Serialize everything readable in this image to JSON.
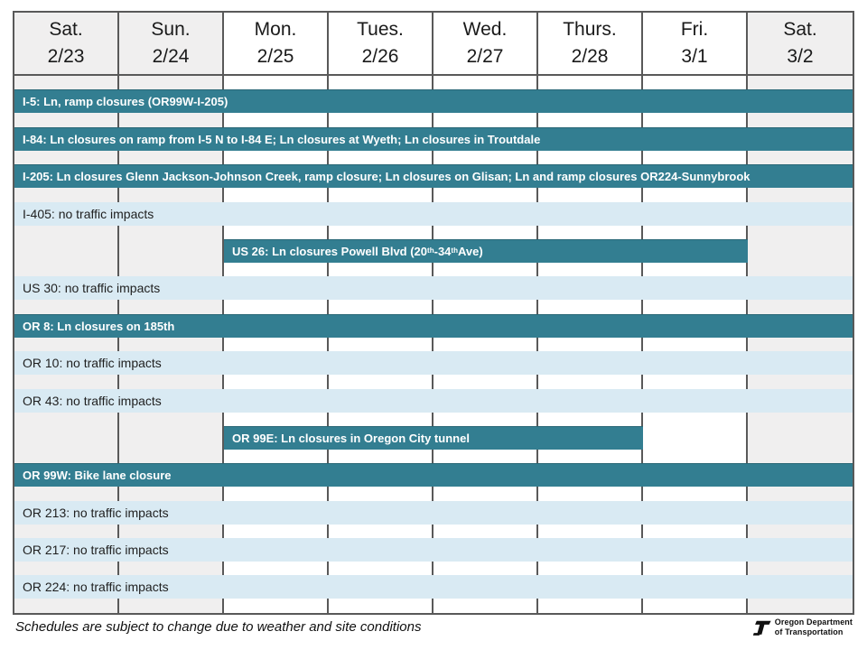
{
  "chart_data": {
    "type": "table",
    "subtype": "gantt-schedule",
    "num_days": 8,
    "days": [
      {
        "name": "Sat.",
        "date": "2/23",
        "weekend": true
      },
      {
        "name": "Sun.",
        "date": "2/24",
        "weekend": true
      },
      {
        "name": "Mon.",
        "date": "2/25",
        "weekend": false
      },
      {
        "name": "Tues.",
        "date": "2/26",
        "weekend": false
      },
      {
        "name": "Wed.",
        "date": "2/27",
        "weekend": false
      },
      {
        "name": "Thurs.",
        "date": "2/28",
        "weekend": false
      },
      {
        "name": "Fri.",
        "date": "3/1",
        "weekend": false
      },
      {
        "name": "Sat.",
        "date": "3/2",
        "weekend": true
      }
    ],
    "rows": [
      {
        "road": "I-5",
        "status": "closure",
        "start": 0,
        "end": 8,
        "label": "I-5: Ln, ramp closures (OR99W-I-205)"
      },
      {
        "road": "I-84",
        "status": "closure",
        "start": 0,
        "end": 8,
        "label": "I-84: Ln closures on ramp from I-5 N to I-84 E; Ln closures at Wyeth; Ln closures in Troutdale"
      },
      {
        "road": "I-205",
        "status": "closure",
        "start": 0,
        "end": 8,
        "label": "I-205:  Ln closures Glenn Jackson-Johnson Creek, ramp closure; Ln closures on Glisan; Ln and ramp closures OR224-Sunnybrook"
      },
      {
        "road": "I-405",
        "status": "none",
        "start": 0,
        "end": 8,
        "label": "I-405: no traffic impacts"
      },
      {
        "road": "US 26",
        "status": "closure",
        "start": 2,
        "end": 7,
        "label": "US 26: Ln closures Powell Blvd (20th-34th Ave)",
        "label_parts": [
          {
            "t": "US 26: Ln closures Powell Blvd (20"
          },
          {
            "t": "th",
            "sup": true
          },
          {
            "t": "-34"
          },
          {
            "t": "th",
            "sup": true
          },
          {
            "t": " Ave)"
          }
        ]
      },
      {
        "road": "US 30",
        "status": "none",
        "start": 0,
        "end": 8,
        "label": "US 30: no traffic impacts"
      },
      {
        "road": "OR 8",
        "status": "closure",
        "start": 0,
        "end": 8,
        "label": "OR 8:  Ln closures on 185th"
      },
      {
        "road": "OR 10",
        "status": "none",
        "start": 0,
        "end": 8,
        "label": "OR 10: no traffic impacts"
      },
      {
        "road": "OR 43",
        "status": "none",
        "start": 0,
        "end": 8,
        "label": "OR 43: no traffic impacts"
      },
      {
        "road": "OR 99E",
        "status": "closure",
        "start": 2,
        "end": 6,
        "label": "OR 99E:  Ln closures in Oregon City tunnel"
      },
      {
        "road": "OR 99W",
        "status": "closure",
        "start": 0,
        "end": 8,
        "label": "OR 99W: Bike lane closure"
      },
      {
        "road": "OR 213",
        "status": "none",
        "start": 0,
        "end": 8,
        "label": "OR 213: no traffic impacts"
      },
      {
        "road": "OR 217",
        "status": "none",
        "start": 0,
        "end": 8,
        "label": "OR 217: no traffic impacts"
      },
      {
        "road": "OR 224",
        "status": "none",
        "start": 0,
        "end": 8,
        "label": "OR 224: no traffic impacts"
      }
    ]
  },
  "footer": {
    "note": "Schedules are subject to change due to weather and site conditions",
    "logo": {
      "line1": "Oregon Department",
      "line2": "of Transportation"
    }
  },
  "colors": {
    "closure_bar": "#337E91",
    "no_impact_bar": "#D9EAF3",
    "weekend_column": "#F0EFEF",
    "grid_border": "#595959",
    "closure_text": "#FFFFFF",
    "no_impact_text": "#1F1F1F"
  }
}
